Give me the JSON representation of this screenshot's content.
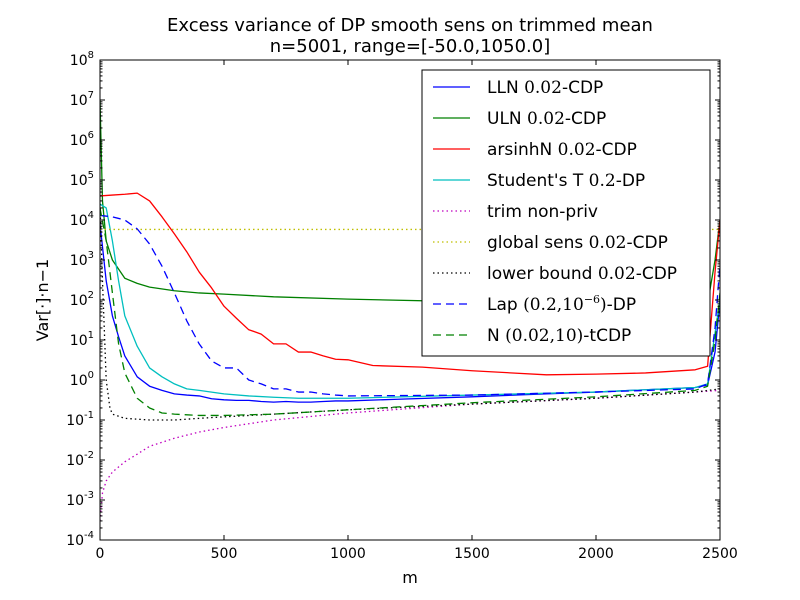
{
  "chart_data": {
    "type": "line",
    "title": "Excess variance of DP smooth sens on trimmed mean",
    "subtitle": "n=5001, range=[-50.0,1050.0]",
    "xlabel": "m",
    "ylabel": "Var[·]·n−1",
    "x_scale": "linear",
    "y_scale": "log",
    "xlim": [
      0,
      2500
    ],
    "ylim_exp": [
      -4,
      8
    ],
    "x_ticks": [
      0,
      500,
      1000,
      1500,
      2000,
      2500
    ],
    "x_tick_labels": [
      "0",
      "500",
      "1000",
      "1500",
      "2000",
      "2500"
    ],
    "y_ticks": [
      -4,
      -3,
      -2,
      -1,
      0,
      1,
      2,
      3,
      4,
      5,
      6,
      7,
      8
    ],
    "y_tick_labels": [
      {
        "base": "10",
        "exp": "-4"
      },
      {
        "base": "10",
        "exp": "-3"
      },
      {
        "base": "10",
        "exp": "-2"
      },
      {
        "base": "10",
        "exp": "-1"
      },
      {
        "base": "10",
        "exp": "0"
      },
      {
        "base": "10",
        "exp": "1"
      },
      {
        "base": "10",
        "exp": "2"
      },
      {
        "base": "10",
        "exp": "3"
      },
      {
        "base": "10",
        "exp": "4"
      },
      {
        "base": "10",
        "exp": "5"
      },
      {
        "base": "10",
        "exp": "6"
      },
      {
        "base": "10",
        "exp": "7"
      },
      {
        "base": "10",
        "exp": "8"
      }
    ],
    "legend_position": "top-right",
    "series": [
      {
        "name": "LLN 0.02-CDP",
        "color": "#0000ff",
        "style": "solid",
        "x": [
          0,
          25,
          50,
          75,
          100,
          150,
          200,
          250,
          300,
          350,
          400,
          450,
          500,
          550,
          600,
          650,
          700,
          750,
          800,
          850,
          900,
          950,
          1000,
          1200,
          1500,
          1800,
          2000,
          2200,
          2400,
          2450,
          2480,
          2500
        ],
        "y": [
          8000,
          300,
          40,
          12,
          4,
          1.2,
          0.7,
          0.55,
          0.45,
          0.42,
          0.4,
          0.34,
          0.32,
          0.31,
          0.31,
          0.29,
          0.28,
          0.29,
          0.28,
          0.28,
          0.29,
          0.3,
          0.3,
          0.33,
          0.38,
          0.45,
          0.5,
          0.57,
          0.65,
          0.75,
          5,
          100
        ]
      },
      {
        "name": "ULN 0.02-CDP",
        "color": "#008000",
        "style": "solid",
        "x": [
          0,
          10,
          25,
          50,
          100,
          150,
          200,
          300,
          400,
          500,
          700,
          1000,
          1500,
          2000,
          2400,
          2450,
          2480,
          2500
        ],
        "y": [
          10000000,
          30000,
          3000,
          1000,
          350,
          260,
          210,
          170,
          150,
          140,
          120,
          105,
          90,
          80,
          75,
          80,
          1000,
          10000
        ]
      },
      {
        "name": "arsinhN 0.02-CDP",
        "color": "#ff0000",
        "style": "solid",
        "x": [
          0,
          50,
          100,
          150,
          200,
          250,
          300,
          350,
          400,
          450,
          500,
          550,
          600,
          625,
          650,
          700,
          725,
          750,
          800,
          825,
          850,
          900,
          950,
          1000,
          1100,
          1300,
          1500,
          1800,
          2000,
          2200,
          2400,
          2450,
          2480,
          2500
        ],
        "y": [
          40000,
          42000,
          44000,
          47000,
          30000,
          12000,
          4500,
          1600,
          500,
          200,
          70,
          35,
          18,
          16,
          14,
          8,
          8,
          8,
          5,
          5,
          5,
          4,
          3.3,
          3.2,
          2.3,
          2.1,
          1.7,
          1.35,
          1.4,
          1.5,
          1.8,
          2.2,
          500,
          10000
        ]
      },
      {
        "name": "Student's T 0.2-DP",
        "color": "#00bfbf",
        "style": "solid",
        "x": [
          0,
          25,
          50,
          75,
          100,
          150,
          200,
          250,
          300,
          350,
          400,
          500,
          600,
          700,
          800,
          1000,
          1500,
          2000,
          2400,
          2450,
          2480,
          2500
        ],
        "y": [
          25000,
          20000,
          3000,
          300,
          40,
          7,
          2,
          1.2,
          0.8,
          0.6,
          0.55,
          0.45,
          0.4,
          0.37,
          0.35,
          0.35,
          0.42,
          0.5,
          0.65,
          0.8,
          15,
          100
        ]
      },
      {
        "name": "trim non-priv",
        "color": "#bf00bf",
        "style": "dotted",
        "x": [
          0,
          10,
          25,
          50,
          100,
          150,
          200,
          300,
          400,
          500,
          700,
          1000,
          1500,
          2000,
          2400,
          2500
        ],
        "y": [
          0.0003,
          0.0015,
          0.003,
          0.005,
          0.009,
          0.014,
          0.022,
          0.035,
          0.05,
          0.065,
          0.1,
          0.15,
          0.25,
          0.35,
          0.5,
          0.55
        ]
      },
      {
        "name": "global sens 0.02-CDP",
        "color": "#bfbf00",
        "style": "dotted",
        "x": [
          0,
          2500
        ],
        "y": [
          5800,
          5800
        ]
      },
      {
        "name": "lower bound 0.02-CDP",
        "color": "#000000",
        "style": "dotted",
        "x": [
          0,
          10,
          25,
          40,
          50,
          100,
          200,
          300,
          400,
          500,
          700,
          1000,
          1500,
          2000,
          2400,
          2500
        ],
        "y": [
          25000,
          300,
          1,
          0.2,
          0.14,
          0.11,
          0.1,
          0.1,
          0.11,
          0.12,
          0.14,
          0.18,
          0.25,
          0.35,
          0.5,
          0.6
        ]
      },
      {
        "name": "Lap (0.2,10^-6)-DP",
        "color": "#0000ff",
        "style": "dashed",
        "x": [
          0,
          50,
          100,
          150,
          200,
          250,
          300,
          350,
          400,
          450,
          500,
          550,
          600,
          650,
          700,
          750,
          800,
          850,
          900,
          950,
          1000,
          1500,
          2000,
          2400,
          2450,
          2480,
          2500
        ],
        "y": [
          13000,
          12000,
          10000,
          6000,
          2500,
          700,
          150,
          30,
          8,
          3,
          2,
          2,
          1,
          0.8,
          0.6,
          0.6,
          0.5,
          0.5,
          0.45,
          0.42,
          0.4,
          0.42,
          0.5,
          0.6,
          0.8,
          20,
          800
        ]
      },
      {
        "name": "N (0.02,10)-tCDP",
        "color": "#008000",
        "style": "dashed",
        "x": [
          0,
          25,
          50,
          75,
          100,
          150,
          200,
          250,
          300,
          400,
          500,
          700,
          1000,
          1500,
          2000,
          2400,
          2450,
          2480,
          2500
        ],
        "y": [
          20000,
          3000,
          150,
          8,
          1.5,
          0.35,
          0.2,
          0.15,
          0.14,
          0.13,
          0.13,
          0.14,
          0.18,
          0.27,
          0.38,
          0.55,
          0.7,
          10,
          150
        ]
      }
    ],
    "legend_entries": [
      {
        "prefix": "LLN ",
        "math": "0.02",
        "suffix": "-CDP"
      },
      {
        "prefix": "ULN ",
        "math": "0.02",
        "suffix": "-CDP"
      },
      {
        "prefix": "arsinhN ",
        "math": "0.02",
        "suffix": "-CDP"
      },
      {
        "prefix": "Student's T ",
        "math": "0.2",
        "suffix": "-DP"
      },
      {
        "prefix": "trim non-priv",
        "math": "",
        "suffix": ""
      },
      {
        "prefix": "global sens ",
        "math": "0.02",
        "suffix": "-CDP"
      },
      {
        "prefix": "lower bound ",
        "math": "0.02",
        "suffix": "-CDP"
      },
      {
        "prefix": "Lap ",
        "math": "(0.2,10",
        "sup": "−6",
        "math2": ")",
        "suffix": "-DP"
      },
      {
        "prefix": "N ",
        "math": "(0.02,10)",
        "suffix": "-tCDP"
      }
    ]
  }
}
